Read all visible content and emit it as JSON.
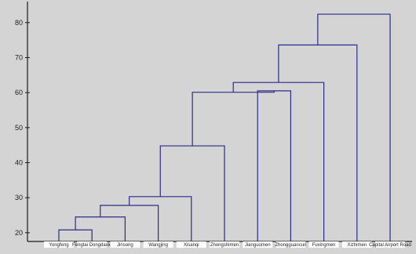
{
  "chart_data": {
    "type": "dendrogram",
    "title": "",
    "xlabel": "",
    "ylabel": "",
    "ylim": [
      17.5,
      86
    ],
    "yticks": [
      20,
      30,
      40,
      50,
      60,
      70,
      80
    ],
    "ytick_labels": [
      "20",
      "30",
      "40",
      "50",
      "60",
      "70",
      "80"
    ],
    "grid": false,
    "leaves": [
      "Yongfeng",
      "Fengtai Dongdaxie",
      "Jinsong",
      "Wangjing",
      "Xisanqi",
      "Zhongshimen",
      "Jianguomen",
      "Zhongguancun",
      "Fuxingmen",
      "Xizhimen",
      "Capital Airport Road"
    ],
    "merges": [
      {
        "a": 0,
        "b": 1,
        "height": 20.8
      },
      {
        "a": 11,
        "b": 2,
        "height": 24.5
      },
      {
        "a": 12,
        "b": 3,
        "height": 27.8
      },
      {
        "a": 13,
        "b": 4,
        "height": 30.3
      },
      {
        "a": 14,
        "b": 5,
        "height": 44.8
      },
      {
        "a": 6,
        "b": 7,
        "height": 60.5
      },
      {
        "a": 15,
        "b": 16,
        "height": 60.1
      },
      {
        "a": 17,
        "b": 8,
        "height": 62.9
      },
      {
        "a": 18,
        "b": 9,
        "height": 73.6
      },
      {
        "a": 19,
        "b": 10,
        "height": 82.4
      }
    ],
    "link_color": "#2b2b8c"
  }
}
